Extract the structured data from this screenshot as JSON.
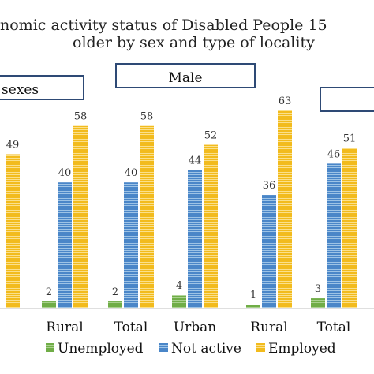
{
  "chart_data": {
    "type": "bar",
    "title_line1": "nomic activity status of Disabled People 15",
    "title_line2": "older by sex and type of locality",
    "group_labels": [
      "sexes",
      "Male",
      ""
    ],
    "categories": [
      "n",
      "Rural",
      "Total",
      "Urban",
      "Rural",
      "Total"
    ],
    "series": [
      {
        "name": "Unemployed",
        "values": [
          null,
          2,
          2,
          4,
          1,
          3
        ],
        "color": "#70ad47"
      },
      {
        "name": "Not active",
        "values": [
          null,
          40,
          40,
          44,
          36,
          46
        ],
        "color": "#4a86c8"
      },
      {
        "name": "Employed",
        "values": [
          49,
          58,
          58,
          52,
          63,
          51
        ],
        "color": "#f2bb1d"
      }
    ],
    "ylim": [
      0,
      70
    ],
    "legend_position": "bottom",
    "colors": {
      "box_border": "#2e4a75",
      "axis": "#bfbfbf"
    }
  }
}
